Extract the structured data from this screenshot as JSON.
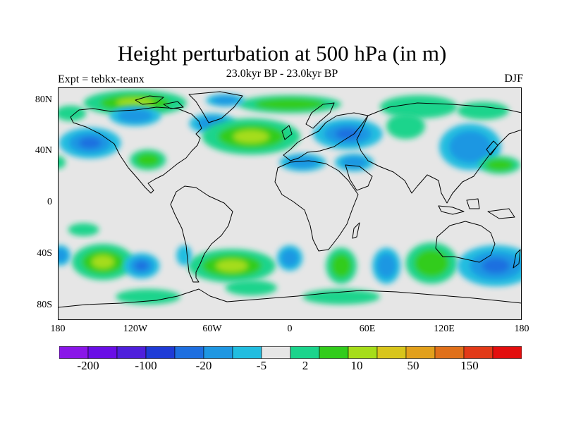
{
  "title": "Height perturbation at 500 hPa (in m)",
  "subtitle": "23.0kyr BP - 23.0kyr BP",
  "left_label": "Expt = tebkx-teanx",
  "right_label": "DJF",
  "map": {
    "lat_ticks": [
      "80N",
      "40N",
      "0",
      "40S",
      "80S"
    ],
    "lon_ticks": [
      "180",
      "120W",
      "60W",
      "0",
      "60E",
      "120E",
      "180"
    ]
  },
  "colorbar": {
    "colors": [
      "#8a16e8",
      "#6a0ee6",
      "#4f1fdc",
      "#1f3bd6",
      "#1e6fe0",
      "#1f97e2",
      "#22bde0",
      "#e6e6e6",
      "#1bd48c",
      "#32cc1c",
      "#a6dd1a",
      "#d8c51c",
      "#e2a01c",
      "#e0701a",
      "#e23a18",
      "#e30e0e"
    ],
    "labels": [
      "-200",
      "-100",
      "-20",
      "-5",
      "2",
      "10",
      "50",
      "150"
    ]
  },
  "anomalies": [
    {
      "lon": -120,
      "lat": 78,
      "rx": 40,
      "ry": 10,
      "level": 3
    },
    {
      "lon": 0,
      "lat": 77,
      "rx": 40,
      "ry": 7,
      "level": 2
    },
    {
      "lon": -170,
      "lat": 70,
      "rx": 12,
      "ry": 6,
      "level": 1
    },
    {
      "lon": 100,
      "lat": 75,
      "rx": 30,
      "ry": 9,
      "level": 1
    },
    {
      "lon": 150,
      "lat": 72,
      "rx": 20,
      "ry": 7,
      "level": 1
    },
    {
      "lon": -155,
      "lat": 47,
      "rx": 24,
      "ry": 12,
      "level": -3
    },
    {
      "lon": -120,
      "lat": 68,
      "rx": 20,
      "ry": 8,
      "level": -2
    },
    {
      "lon": -50,
      "lat": 80,
      "rx": 15,
      "ry": 5,
      "level": -2
    },
    {
      "lon": -60,
      "lat": 62,
      "rx": 18,
      "ry": 8,
      "level": -2
    },
    {
      "lon": -30,
      "lat": 52,
      "rx": 38,
      "ry": 14,
      "level": 3
    },
    {
      "lon": -110,
      "lat": 34,
      "rx": 14,
      "ry": 8,
      "level": 2
    },
    {
      "lon": -180,
      "lat": 32,
      "rx": 6,
      "ry": 5,
      "level": 1
    },
    {
      "lon": 45,
      "lat": 54,
      "rx": 27,
      "ry": 12,
      "level": -3
    },
    {
      "lon": 10,
      "lat": 32,
      "rx": 18,
      "ry": 7,
      "level": -2
    },
    {
      "lon": 50,
      "lat": 32,
      "rx": 15,
      "ry": 7,
      "level": -2
    },
    {
      "lon": 90,
      "lat": 60,
      "rx": 15,
      "ry": 10,
      "level": 1
    },
    {
      "lon": 140,
      "lat": 44,
      "rx": 24,
      "ry": 18,
      "level": -2
    },
    {
      "lon": 163,
      "lat": 30,
      "rx": 16,
      "ry": 7,
      "level": 2
    },
    {
      "lon": -145,
      "lat": -45,
      "rx": 24,
      "ry": 14,
      "level": 3
    },
    {
      "lon": -115,
      "lat": -48,
      "rx": 14,
      "ry": 10,
      "level": -3
    },
    {
      "lon": -45,
      "lat": -48,
      "rx": 34,
      "ry": 13,
      "level": 3
    },
    {
      "lon": -30,
      "lat": -65,
      "rx": 20,
      "ry": 6,
      "level": 1
    },
    {
      "lon": -82,
      "lat": -40,
      "rx": 6,
      "ry": 8,
      "level": -1
    },
    {
      "lon": -178,
      "lat": -40,
      "rx": 8,
      "ry": 8,
      "level": -2
    },
    {
      "lon": 0,
      "lat": -42,
      "rx": 10,
      "ry": 10,
      "level": -2
    },
    {
      "lon": 40,
      "lat": -48,
      "rx": 12,
      "ry": 14,
      "level": 2
    },
    {
      "lon": 75,
      "lat": -48,
      "rx": 11,
      "ry": 14,
      "level": -2
    },
    {
      "lon": 110,
      "lat": -46,
      "rx": 20,
      "ry": 16,
      "level": 2
    },
    {
      "lon": 160,
      "lat": -48,
      "rx": 30,
      "ry": 16,
      "level": -3
    },
    {
      "lon": -160,
      "lat": -20,
      "rx": 12,
      "ry": 5,
      "level": 1
    },
    {
      "lon": -110,
      "lat": -72,
      "rx": 25,
      "ry": 6,
      "level": 1
    },
    {
      "lon": 40,
      "lat": -72,
      "rx": 30,
      "ry": 6,
      "level": 1
    }
  ]
}
